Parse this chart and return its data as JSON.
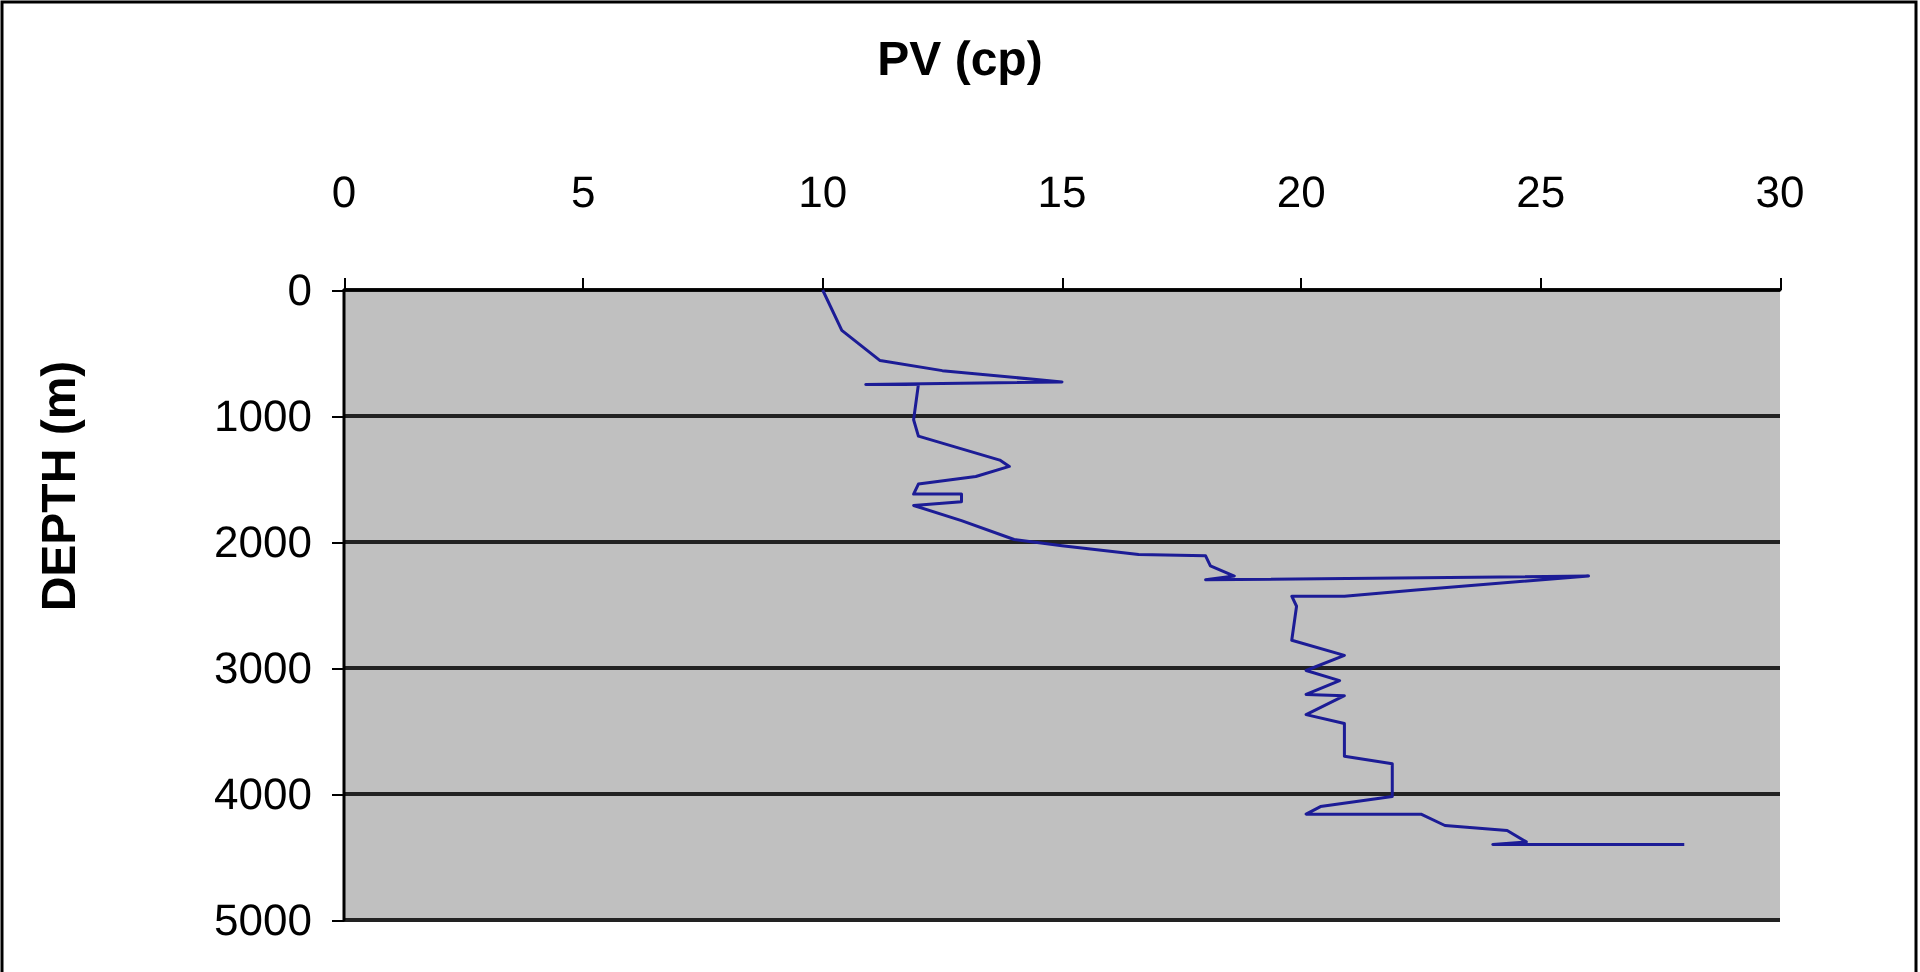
{
  "chart_data": {
    "type": "line",
    "xlabel": "PV (cp)",
    "ylabel": "DEPTH (m)",
    "xlim": [
      0,
      30
    ],
    "xticks": [
      0,
      5,
      10,
      15,
      20,
      25,
      30
    ],
    "ylim": [
      5000,
      0
    ],
    "yticks": [
      0,
      1000,
      2000,
      3000,
      4000,
      5000
    ],
    "grid": "y",
    "marker": "none",
    "line_style": "solid",
    "series": [
      {
        "color": "#1c1c96",
        "x": [
          10,
          10.4,
          11.2,
          12.5,
          15.0,
          10.9,
          12.0,
          11.9,
          12.0,
          13.7,
          13.9,
          13.2,
          12.0,
          11.9,
          12.9,
          12.9,
          11.9,
          12.9,
          14.0,
          15.0,
          16.6,
          18.0,
          18.1,
          18.6,
          18.0,
          26.0,
          22.4,
          20.9,
          19.8,
          19.9,
          19.8,
          20.9,
          20.1,
          20.8,
          20.1,
          20.9,
          20.1,
          20.9,
          20.9,
          21.9,
          21.9,
          20.4,
          20.1,
          22.5,
          23.0,
          24.3,
          24.7,
          24.0,
          28.0
        ],
        "values": [
          0,
          320,
          560,
          640,
          730,
          750,
          750,
          1030,
          1160,
          1350,
          1400,
          1480,
          1540,
          1620,
          1620,
          1680,
          1710,
          1830,
          1980,
          2030,
          2100,
          2110,
          2190,
          2270,
          2300,
          2270,
          2380,
          2430,
          2430,
          2510,
          2780,
          2900,
          3020,
          3100,
          3210,
          3220,
          3370,
          3440,
          3700,
          3760,
          4020,
          4100,
          4160,
          4160,
          4250,
          4290,
          4380,
          4400,
          4400
        ]
      }
    ]
  }
}
